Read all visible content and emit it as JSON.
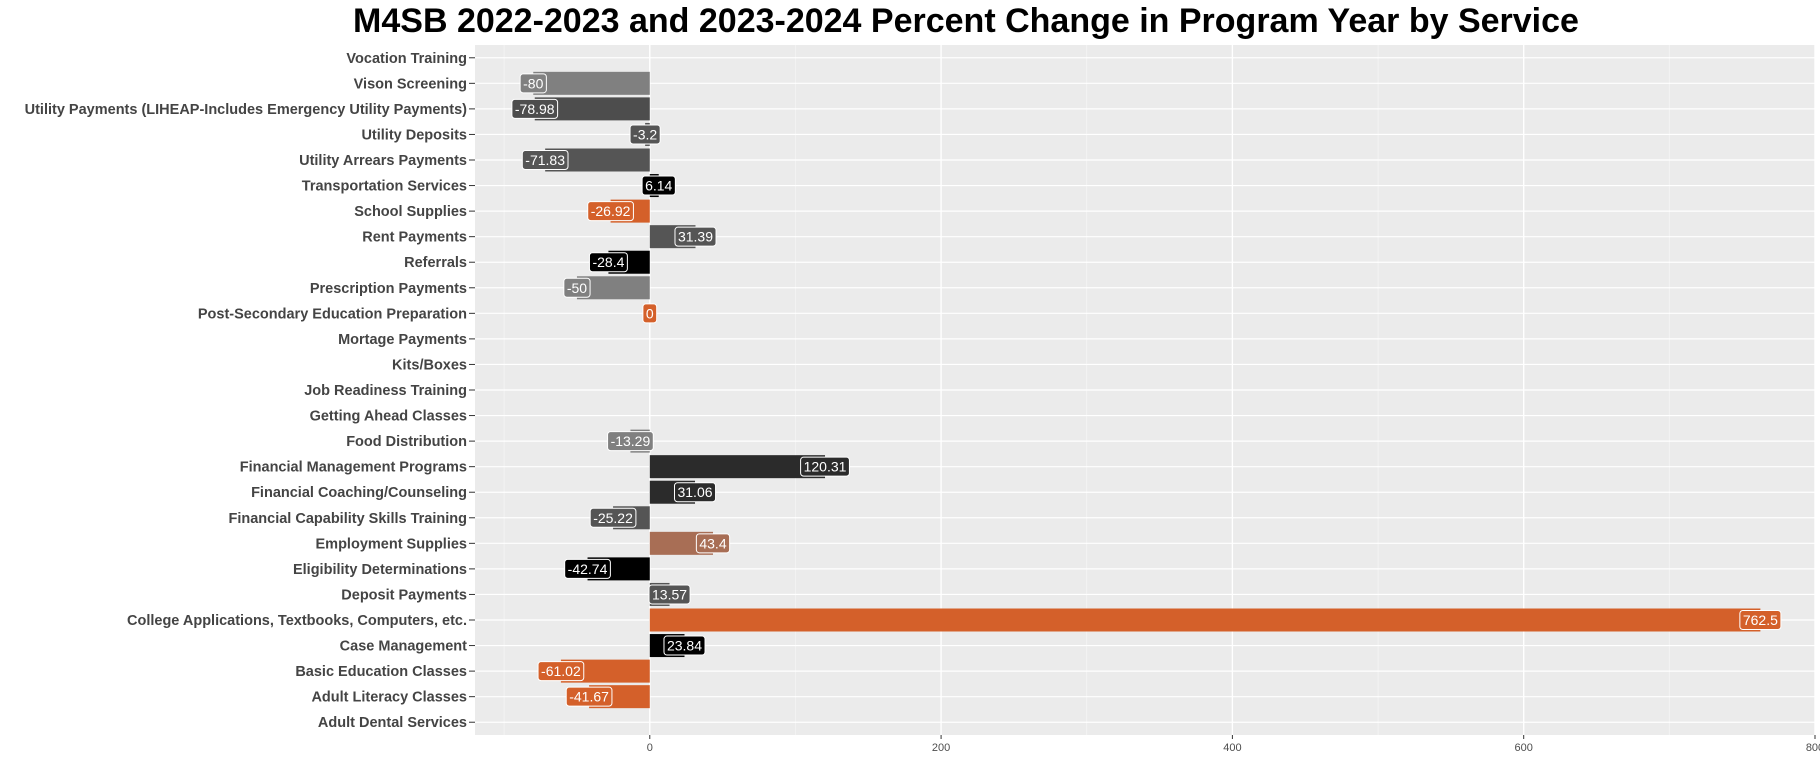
{
  "chart_data": {
    "type": "bar",
    "orientation": "horizontal",
    "title": "M4SB 2022-2023 and 2023-2024 Percent Change in Program Year by Service",
    "xlabel": "",
    "ylabel": "",
    "xlim": [
      -120,
      800
    ],
    "x_ticks": [
      0,
      200,
      400,
      600,
      800
    ],
    "grid": true,
    "legend": "none",
    "panel_background": "#ebebeb",
    "categories": [
      "Vocation Training",
      "Vison Screening",
      "Utility Payments (LIHEAP-Includes Emergency Utility Payments)",
      "Utility Deposits",
      "Utility Arrears Payments",
      "Transportation Services",
      "School Supplies",
      "Rent Payments",
      "Referrals",
      "Prescription Payments",
      "Post-Secondary Education Preparation",
      "Mortage Payments",
      "Kits/Boxes",
      "Job Readiness Training",
      "Getting Ahead Classes",
      "Food Distribution",
      "Financial Management Programs",
      "Financial Coaching/Counseling",
      "Financial Capability Skills Training",
      "Employment Supplies",
      "Eligibility Determinations",
      "Deposit Payments",
      "College Applications, Textbooks, Computers, etc.",
      "Case Management",
      "Basic Education Classes",
      "Adult Literacy Classes",
      "Adult Dental Services"
    ],
    "values": [
      null,
      -80,
      -78.98,
      -3.2,
      -71.83,
      6.14,
      -26.92,
      31.39,
      -28.4,
      -50,
      0,
      null,
      null,
      null,
      null,
      -13.29,
      120.31,
      31.06,
      -25.22,
      43.4,
      -42.74,
      13.57,
      762.5,
      23.84,
      -61.02,
      -41.67,
      null
    ],
    "labels": [
      "",
      "-80",
      "-78.98",
      "-3.2",
      "-71.83",
      "6.14",
      "-26.92",
      "31.39",
      "-28.4",
      "-50",
      "0",
      "",
      "",
      "",
      "",
      "-13.29",
      "120.31",
      "31.06",
      "-25.22",
      "43.4",
      "-42.74",
      "13.57",
      "762.5",
      "23.84",
      "-61.02",
      "-41.67",
      ""
    ],
    "colors": [
      "#808080",
      "#808080",
      "#4d4d4d",
      "#555555",
      "#555555",
      "#000000",
      "#d4602a",
      "#555555",
      "#000000",
      "#808080",
      "#d4602a",
      "#808080",
      "#808080",
      "#808080",
      "#808080",
      "#808080",
      "#2b2b2b",
      "#2b2b2b",
      "#555555",
      "#a86e55",
      "#000000",
      "#555555",
      "#d4602a",
      "#000000",
      "#d4602a",
      "#d4602a",
      "#808080"
    ]
  }
}
